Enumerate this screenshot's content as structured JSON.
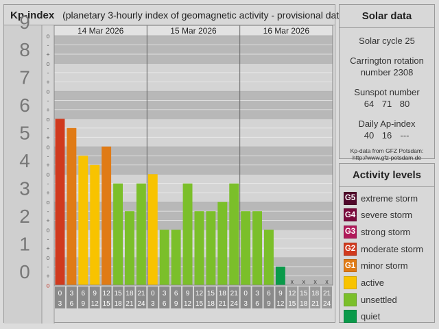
{
  "header": {
    "title": "Kp-index",
    "subtitle": "(planetary 3-hourly index of geomagnetic activity - provisional data)"
  },
  "chart_data": {
    "type": "bar",
    "ylim": [
      0,
      9
    ],
    "y_ticks": [
      "0",
      "1",
      "2",
      "3",
      "4",
      "5",
      "6",
      "7",
      "8",
      "9"
    ],
    "minor_marks": [
      "o",
      "+",
      "-"
    ],
    "days": [
      "14 Mar 2026",
      "15 Mar 2026",
      "16 Mar 2026"
    ],
    "slot_starts": [
      "0",
      "3",
      "6",
      "9",
      "12",
      "15",
      "18",
      "21"
    ],
    "slot_ends": [
      "3",
      "6",
      "9",
      "12",
      "15",
      "18",
      "21",
      "24"
    ],
    "values": [
      6,
      5.667,
      4.667,
      4.333,
      5,
      3.667,
      2.667,
      3.667,
      4,
      2,
      2,
      3.667,
      2.667,
      2.667,
      3,
      3.667,
      2.667,
      2.667,
      2,
      0.667,
      null,
      null,
      null,
      null
    ],
    "missing_marker": "x"
  },
  "colors": {
    "quiet": "#0a9a4a",
    "unsettled": "#7bbf2a",
    "active": "#f8c300",
    "g1": "#e07b16",
    "g2": "#d03a1e",
    "g3": "#b01a5a",
    "g4": "#7a0a3c",
    "g5": "#50082a"
  },
  "solar": {
    "title": "Solar data",
    "cycle": "Solar cycle 25",
    "carrington_line1": "Carrington rotation",
    "carrington_line2": "number 2308",
    "sunspot_label": "Sunspot number",
    "sunspot_values": [
      "64",
      "71",
      "80"
    ],
    "ap_label": "Daily Ap-index",
    "ap_values": [
      "40",
      "16",
      "---"
    ],
    "source_line1": "Kp-data from GFZ Potsdam:",
    "source_line2": "http://www.gfz-potsdam.de"
  },
  "activity": {
    "title": "Activity levels",
    "levels": [
      {
        "code": "G5",
        "label": "extreme storm",
        "color": "#50082a"
      },
      {
        "code": "G4",
        "label": "severe storm",
        "color": "#7a0a3c"
      },
      {
        "code": "G3",
        "label": "strong storm",
        "color": "#b01a5a"
      },
      {
        "code": "G2",
        "label": "moderate storm",
        "color": "#d03a1e"
      },
      {
        "code": "G1",
        "label": "minor storm",
        "color": "#e07b16"
      },
      {
        "code": "",
        "label": "active",
        "color": "#f8c300"
      },
      {
        "code": "",
        "label": "unsettled",
        "color": "#7bbf2a"
      },
      {
        "code": "",
        "label": "quiet",
        "color": "#0a9a4a"
      }
    ]
  }
}
